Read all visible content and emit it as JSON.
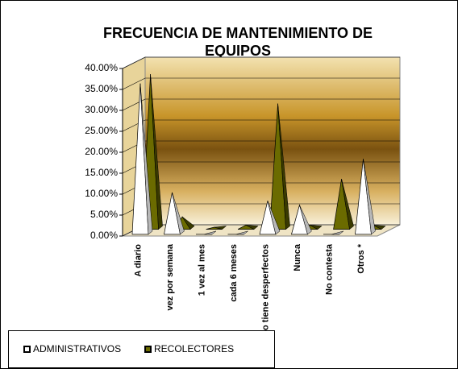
{
  "chart_data": {
    "type": "pyramid3d",
    "title": "FRECUENCIA DE MANTENIMIENTO DE EQUIPOS",
    "categories": [
      "A diario",
      "vez por semana",
      "1 vez al mes",
      "cada 6 meses",
      "Cuando tiene desperfectos",
      "Nunca",
      "No contesta",
      "Otros *"
    ],
    "series": [
      {
        "name": "ADMINISTRATIVOS",
        "color": "#ffffff",
        "values": [
          36,
          10,
          0,
          0,
          8,
          7,
          0,
          18
        ]
      },
      {
        "name": "RECOLECTORES",
        "color": "#6b6b00",
        "values": [
          37,
          3,
          0.5,
          1,
          30,
          1,
          12,
          1
        ]
      }
    ],
    "ylim": [
      0,
      40
    ],
    "yticks": [
      {
        "value": 0,
        "label": "0.00%"
      },
      {
        "value": 5,
        "label": "5.00%"
      },
      {
        "value": 10,
        "label": "10.00%"
      },
      {
        "value": 15,
        "label": "15.00%"
      },
      {
        "value": 20,
        "label": "20.00%"
      },
      {
        "value": 25,
        "label": "25.00%"
      },
      {
        "value": 30,
        "label": "30.00%"
      },
      {
        "value": 35,
        "label": "35.00%"
      },
      {
        "value": 40,
        "label": "40.00%"
      }
    ],
    "grid": true
  }
}
